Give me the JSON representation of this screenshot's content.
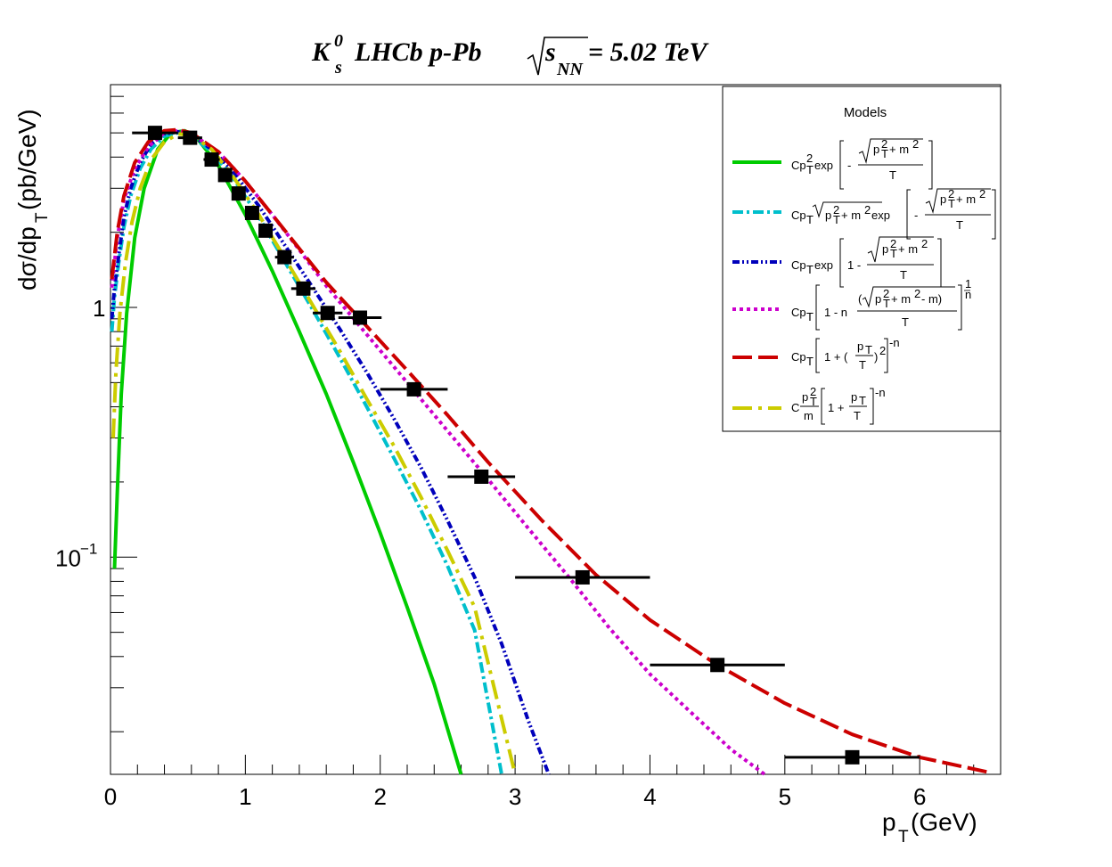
{
  "chart_data": {
    "type": "scatter",
    "title": {
      "main": "LHCb p-Pb",
      "symbol": "K",
      "symbol_sup": "0",
      "symbol_sub": "s",
      "sqrt": "s",
      "sqrt_sub": "NN",
      "energy": "= 5.02 TeV"
    },
    "xlabel": {
      "main": "p",
      "sub": "T",
      "unit": " (GeV)"
    },
    "ylabel": {
      "main": "dσ/dp",
      "sub": "T",
      "unit": " (pb/GeV)"
    },
    "x_scale": "linear",
    "y_scale": "log",
    "xlim": [
      0,
      6.6
    ],
    "ylim": [
      0.0135,
      7.8
    ],
    "x_ticks": [
      {
        "value": 0,
        "label": "0"
      },
      {
        "value": 1,
        "label": "1"
      },
      {
        "value": 2,
        "label": "2"
      },
      {
        "value": 3,
        "label": "3"
      },
      {
        "value": 4,
        "label": "4"
      },
      {
        "value": 5,
        "label": "5"
      },
      {
        "value": 6,
        "label": "6"
      }
    ],
    "y_ticks": [
      {
        "value": 1,
        "label": "1"
      },
      {
        "value": 0.1,
        "label": "10",
        "sup": "−1"
      }
    ],
    "legend": {
      "title": "Models",
      "position": "top-right",
      "entries": [
        {
          "formula_text": "Cp_T^2 exp[-sqrt(p_T^2 + m^2)/T]",
          "color": "#00cc00",
          "style": "solid"
        },
        {
          "formula_text": "Cp_T sqrt(p_T^2 + m^2) exp[-sqrt(p_T^2 + m^2)/T]",
          "color": "#00bfcc",
          "style": "dashdot"
        },
        {
          "formula_text": "Cp_T exp[1 - sqrt(p_T^2 + m^2)/T]",
          "color": "#0000bb",
          "style": "dashdotdot"
        },
        {
          "formula_text": "Cp_T [1 - n (sqrt(p_T^2 + m^2) - m)/T]^(1/n)",
          "color": "#cc00cc",
          "style": "dotted"
        },
        {
          "formula_text": "Cp_T [1 + (p_T/T)^2]^-n",
          "color": "#cc0000",
          "style": "longdash"
        },
        {
          "formula_text": "C (p_T^2/m) [1 + p_T/T]^-n",
          "color": "#cccc00",
          "style": "longdashdot"
        }
      ]
    },
    "data_points": [
      {
        "x": 0.33,
        "y": 5.0,
        "xerr": 0.17
      },
      {
        "x": 0.59,
        "y": 4.78,
        "xerr": 0.09
      },
      {
        "x": 0.75,
        "y": 3.91,
        "xerr": 0.06
      },
      {
        "x": 0.85,
        "y": 3.39,
        "xerr": 0.05
      },
      {
        "x": 0.95,
        "y": 2.86,
        "xerr": 0.05
      },
      {
        "x": 1.05,
        "y": 2.39,
        "xerr": 0.05
      },
      {
        "x": 1.15,
        "y": 2.03,
        "xerr": 0.05
      },
      {
        "x": 1.29,
        "y": 1.59,
        "xerr": 0.07
      },
      {
        "x": 1.43,
        "y": 1.19,
        "xerr": 0.09
      },
      {
        "x": 1.61,
        "y": 0.95,
        "xerr": 0.11
      },
      {
        "x": 1.85,
        "y": 0.91,
        "xerr": 0.16
      },
      {
        "x": 2.25,
        "y": 0.47,
        "xerr": 0.25
      },
      {
        "x": 2.75,
        "y": 0.21,
        "xerr": 0.25
      },
      {
        "x": 3.5,
        "y": 0.083,
        "xerr": 0.5
      },
      {
        "x": 4.5,
        "y": 0.037,
        "xerr": 0.5
      },
      {
        "x": 5.5,
        "y": 0.0158,
        "xerr": 0.5
      }
    ],
    "series": [
      {
        "color": "#00cc00",
        "style": "solid",
        "x": [
          0.03,
          0.05,
          0.08,
          0.12,
          0.18,
          0.25,
          0.35,
          0.45,
          0.55,
          0.65,
          0.8,
          1.0,
          1.2,
          1.4,
          1.6,
          1.8,
          2.0,
          2.2,
          2.4,
          2.6
        ],
        "y": [
          0.09,
          0.18,
          0.45,
          0.95,
          1.9,
          3.0,
          4.3,
          5.0,
          5.1,
          4.7,
          3.7,
          2.35,
          1.4,
          0.8,
          0.45,
          0.24,
          0.125,
          0.063,
          0.031,
          0.0135
        ]
      },
      {
        "color": "#00bfcc",
        "style": "dashdot",
        "x": [
          0.01,
          0.03,
          0.06,
          0.1,
          0.15,
          0.22,
          0.3,
          0.4,
          0.5,
          0.6,
          0.75,
          0.9,
          1.1,
          1.3,
          1.5,
          1.7,
          1.9,
          2.1,
          2.3,
          2.5,
          2.7,
          2.9
        ],
        "y": [
          0.8,
          1.1,
          1.5,
          2.1,
          2.8,
          3.6,
          4.3,
          4.85,
          5.0,
          4.85,
          4.2,
          3.35,
          2.3,
          1.5,
          0.98,
          0.63,
          0.4,
          0.25,
          0.155,
          0.092,
          0.051,
          0.0135
        ]
      },
      {
        "color": "#0000bb",
        "style": "dashdotdot",
        "x": [
          0.01,
          0.03,
          0.06,
          0.1,
          0.15,
          0.22,
          0.3,
          0.4,
          0.5,
          0.6,
          0.75,
          0.9,
          1.1,
          1.3,
          1.5,
          1.7,
          1.9,
          2.1,
          2.3,
          2.5,
          2.7,
          2.9,
          3.1,
          3.25
        ],
        "y": [
          0.9,
          1.2,
          1.6,
          2.3,
          3.0,
          3.8,
          4.5,
          4.95,
          5.05,
          4.9,
          4.3,
          3.55,
          2.55,
          1.75,
          1.2,
          0.82,
          0.55,
          0.36,
          0.23,
          0.14,
          0.083,
          0.045,
          0.022,
          0.0135
        ]
      },
      {
        "color": "#cc00cc",
        "style": "dotted",
        "x": [
          0.01,
          0.05,
          0.1,
          0.18,
          0.28,
          0.4,
          0.5,
          0.6,
          0.8,
          1.0,
          1.2,
          1.4,
          1.6,
          1.9,
          2.2,
          2.5,
          2.8,
          3.1,
          3.4,
          3.7,
          4.0,
          4.3,
          4.6,
          4.85
        ],
        "y": [
          1.2,
          1.9,
          2.7,
          3.6,
          4.4,
          5.0,
          5.1,
          4.95,
          4.2,
          3.2,
          2.35,
          1.7,
          1.22,
          0.78,
          0.5,
          0.32,
          0.205,
          0.13,
          0.083,
          0.052,
          0.034,
          0.024,
          0.017,
          0.0135
        ]
      },
      {
        "color": "#cc0000",
        "style": "longdash",
        "x": [
          0.01,
          0.05,
          0.1,
          0.18,
          0.28,
          0.4,
          0.5,
          0.6,
          0.8,
          1.0,
          1.2,
          1.4,
          1.6,
          1.9,
          2.2,
          2.5,
          2.8,
          3.2,
          3.6,
          4.0,
          4.5,
          5.0,
          5.5,
          6.0,
          6.5
        ],
        "y": [
          1.3,
          2.0,
          2.8,
          3.8,
          4.6,
          5.1,
          5.15,
          5.0,
          4.2,
          3.2,
          2.35,
          1.72,
          1.26,
          0.84,
          0.56,
          0.37,
          0.24,
          0.14,
          0.085,
          0.056,
          0.037,
          0.026,
          0.0195,
          0.0158,
          0.0138
        ]
      },
      {
        "color": "#cccc00",
        "style": "longdashdot",
        "x": [
          0.02,
          0.04,
          0.07,
          0.11,
          0.16,
          0.22,
          0.3,
          0.4,
          0.5,
          0.6,
          0.75,
          0.9,
          1.1,
          1.3,
          1.5,
          1.7,
          1.9,
          2.1,
          2.3,
          2.5,
          2.7,
          3.0
        ],
        "y": [
          0.3,
          0.55,
          0.95,
          1.5,
          2.2,
          3.0,
          3.9,
          4.6,
          4.95,
          4.9,
          4.3,
          3.4,
          2.35,
          1.55,
          1.02,
          0.67,
          0.43,
          0.28,
          0.175,
          0.106,
          0.063,
          0.0135
        ]
      }
    ]
  }
}
